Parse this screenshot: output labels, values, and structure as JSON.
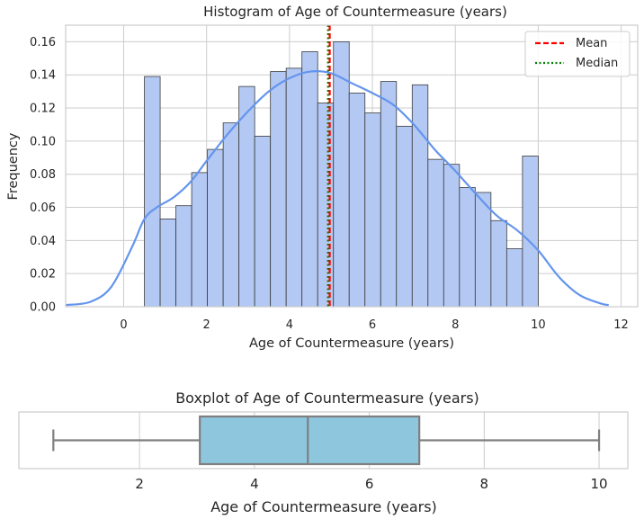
{
  "chart_data": [
    {
      "type": "bar",
      "title": "Histogram of Age of Countermeasure (years)",
      "xlabel": "Age of Countermeasure (years)",
      "ylabel": "Frequency",
      "xlim": [
        -1.4,
        12.4
      ],
      "ylim": [
        0,
        0.17
      ],
      "xticks": [
        0,
        2,
        4,
        6,
        8,
        10,
        12
      ],
      "yticks": [
        0.0,
        0.02,
        0.04,
        0.06,
        0.08,
        0.1,
        0.12,
        0.14,
        0.16
      ],
      "ytick_labels": [
        "0.00",
        "0.02",
        "0.04",
        "0.06",
        "0.08",
        "0.10",
        "0.12",
        "0.14",
        "0.16"
      ],
      "grid": true,
      "bin_start": 0.5,
      "bin_width": 0.38,
      "values": [
        0.139,
        0.053,
        0.061,
        0.081,
        0.095,
        0.111,
        0.133,
        0.103,
        0.142,
        0.144,
        0.154,
        0.123,
        0.16,
        0.129,
        0.117,
        0.136,
        0.109,
        0.134,
        0.089,
        0.086,
        0.072,
        0.069,
        0.052,
        0.035,
        0.091
      ],
      "kde": {
        "x": [
          -1.4,
          -0.8,
          -0.3,
          0.2,
          0.5,
          0.8,
          1.2,
          1.6,
          2.0,
          2.5,
          3.0,
          3.5,
          4.0,
          4.5,
          5.0,
          5.5,
          6.0,
          6.5,
          7.0,
          7.5,
          8.0,
          8.5,
          9.0,
          9.5,
          10.0,
          10.5,
          11.0,
          11.5,
          11.7
        ],
        "y": [
          0.001,
          0.003,
          0.012,
          0.036,
          0.053,
          0.06,
          0.066,
          0.075,
          0.088,
          0.104,
          0.118,
          0.13,
          0.138,
          0.142,
          0.141,
          0.135,
          0.129,
          0.122,
          0.11,
          0.095,
          0.082,
          0.068,
          0.055,
          0.046,
          0.034,
          0.018,
          0.007,
          0.002,
          0.001
        ]
      },
      "mean": 4.97,
      "median": 4.93,
      "legend_position": "top-right",
      "legend": [
        {
          "label": "Mean",
          "color": "#ff0000",
          "style": "dashed"
        },
        {
          "label": "Median",
          "color": "#008000",
          "style": "dotted"
        }
      ],
      "colors": {
        "bar_fill": "#b3c8f3",
        "bar_edge": "#3c3c3c",
        "kde": "#6495ed"
      }
    },
    {
      "type": "box",
      "title": "Boxplot of Age of Countermeasure (years)",
      "xlabel": "Age of Countermeasure (years)",
      "xlim": [
        -0.1,
        10.5
      ],
      "xticks": [
        2,
        4,
        6,
        8,
        10
      ],
      "grid": true,
      "min": 0.5,
      "q1": 3.05,
      "median": 4.93,
      "q3": 6.87,
      "max": 10.0,
      "colors": {
        "box_fill": "#8ec6de",
        "line": "#7f7f7f"
      }
    }
  ]
}
